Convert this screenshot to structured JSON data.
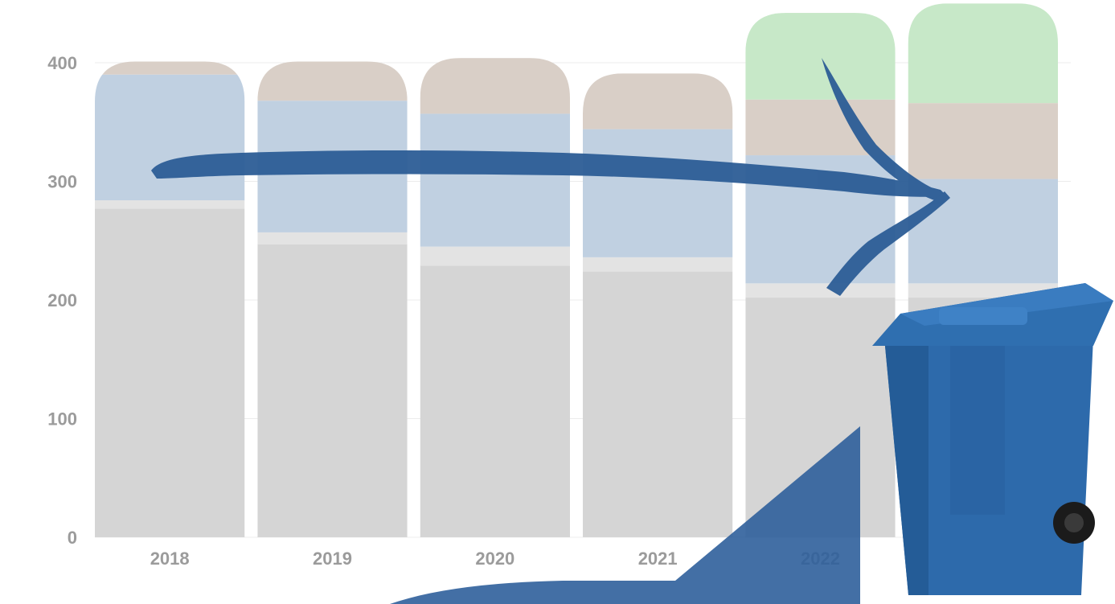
{
  "chart_data": {
    "type": "bar",
    "stacked": true,
    "categories": [
      "2018",
      "2019",
      "2020",
      "2021",
      "2022",
      ""
    ],
    "series": [
      {
        "key": "gray",
        "values": [
          277,
          247,
          229,
          224,
          202,
          202
        ],
        "color": "#d5d5d5"
      },
      {
        "key": "lightgray",
        "values": [
          7,
          10,
          16,
          12,
          12,
          12
        ],
        "color": "#e3e3e3"
      },
      {
        "key": "blue",
        "values": [
          106,
          111,
          112,
          108,
          108,
          88
        ],
        "color": "#c0d0e1"
      },
      {
        "key": "tan",
        "values": [
          11,
          33,
          47,
          47,
          47,
          64
        ],
        "color": "#d9cfc7"
      },
      {
        "key": "green",
        "values": [
          0,
          0,
          0,
          0,
          73,
          84
        ],
        "color": "#c7e8c8"
      }
    ],
    "y_ticks": [
      "0",
      "100",
      "200",
      "300",
      "400"
    ],
    "ylim": [
      0,
      400
    ],
    "grid": true,
    "legend": "none",
    "title": "",
    "xlabel": "",
    "ylabel": ""
  },
  "colors": {
    "arrow": "#2c5d96",
    "bin_body": "#2d6aab",
    "bin_lid": "#2f6fb0",
    "wedge": "#2f5f9b",
    "axis_text": "#9b9b9b",
    "grid": "#ececec"
  },
  "illustrations": {
    "arrow": "hand-drawn-arrow-icon",
    "bin": "wheeled-recycling-bin-icon",
    "wedge": "decorative-wedge-shape"
  }
}
